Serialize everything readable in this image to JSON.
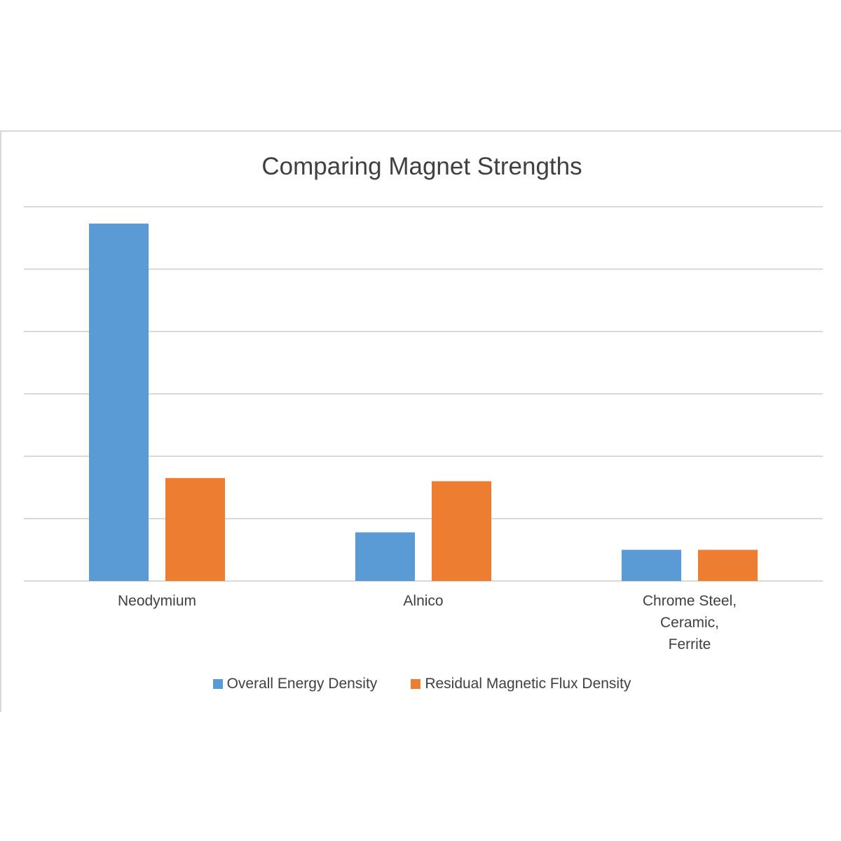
{
  "chart_data": {
    "type": "bar",
    "title": "Comparing Magnet Strengths",
    "categories": [
      "Neodymium",
      "Alnico",
      "Chrome Steel,\nCeramic,\nFerrite"
    ],
    "series": [
      {
        "name": "Overall Energy Density",
        "color": "#5b9bd5",
        "values": [
          5.73,
          0.78,
          0.5
        ]
      },
      {
        "name": "Residual Magnetic Flux Density",
        "color": "#ed7d31",
        "values": [
          1.65,
          1.6,
          0.5
        ]
      }
    ],
    "ylim": [
      0,
      6
    ],
    "grid": true,
    "legend": "bottom"
  }
}
